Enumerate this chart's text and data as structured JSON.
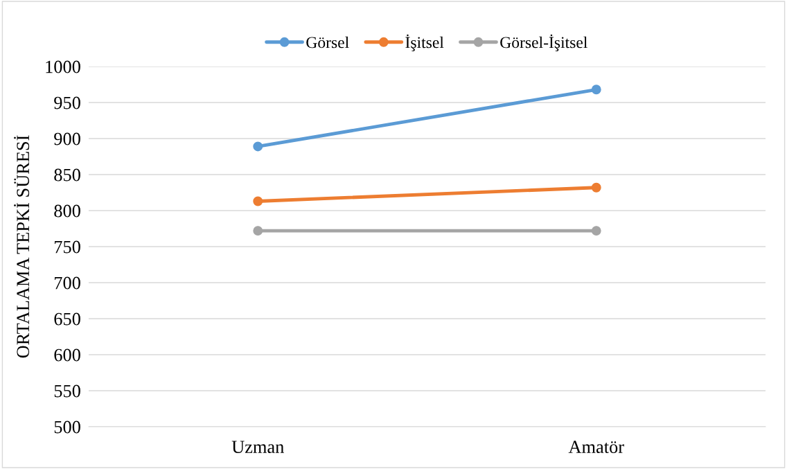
{
  "chart_data": {
    "type": "line",
    "ylabel": "ORTALAMA TEPKİ SÜRESİ",
    "categories": [
      "Uzman",
      "Amatör"
    ],
    "series": [
      {
        "name": "Görsel",
        "color": "#5b9bd5",
        "values": [
          889,
          968
        ]
      },
      {
        "name": "İşitsel",
        "color": "#ed7d31",
        "values": [
          813,
          832
        ]
      },
      {
        "name": "Görsel-İşitsel",
        "color": "#a5a5a5",
        "values": [
          772,
          772
        ]
      }
    ],
    "ylim": [
      500,
      1000
    ],
    "yticks": [
      500,
      550,
      600,
      650,
      700,
      750,
      800,
      850,
      900,
      950,
      1000
    ],
    "grid": "y",
    "legend": "top",
    "marker": "circle",
    "line_style": "solid"
  }
}
